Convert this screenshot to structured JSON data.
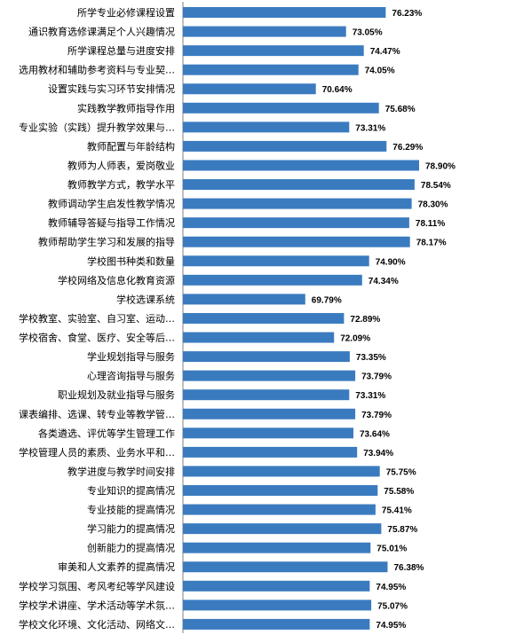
{
  "chart_data": {
    "type": "bar",
    "orientation": "horizontal",
    "title": "",
    "xlabel": "",
    "ylabel": "",
    "grid": false,
    "legend": "none",
    "bar_color": "#3A7BC0",
    "xlim": [
      60,
      80
    ],
    "categories": [
      "所学专业必修课程设置",
      "通识教育选修课满足个人兴趣情况",
      "所学课程总量与进度安排",
      "选用教材和辅助参考资料与专业契…",
      "设置实践与实习环节安排情况",
      "实践教学教师指导作用",
      "专业实验（实践）提升教学效果与…",
      "教师配置与年龄结构",
      "教师为人师表，爱岗敬业",
      "教师教学方式，教学水平",
      "教师调动学生启发性教学情况",
      "教师辅导答疑与指导工作情况",
      "教师帮助学生学习和发展的指导",
      "学校图书种类和数量",
      "学校网络及信息化教育资源",
      "学校选课系统",
      "学校教室、实验室、自习室、运动…",
      "学校宿舍、食堂、医疗、安全等后…",
      "学业规划指导与服务",
      "心理咨询指导与服务",
      "职业规划及就业指导与服务",
      "课表编排、选课、转专业等教学管…",
      "各类遴选、评优等学生管理工作",
      "学校管理人员的素质、业务水平和…",
      "教学进度与教学时间安排",
      "专业知识的提高情况",
      "专业技能的提高情况",
      "学习能力的提高情况",
      "创新能力的提高情况",
      "审美和人文素养的提高情况",
      "学校学习氛围、考风考纪等学风建设",
      "学校学术讲座、学术活动等学术氛…",
      "学校文化环境、文化活动、网络文…"
    ],
    "values": [
      76.23,
      73.05,
      74.47,
      74.05,
      70.64,
      75.68,
      73.31,
      76.29,
      78.9,
      78.54,
      78.3,
      78.11,
      78.17,
      74.9,
      74.34,
      69.79,
      72.89,
      72.09,
      73.35,
      73.79,
      73.31,
      73.79,
      73.64,
      73.94,
      75.75,
      75.58,
      75.41,
      75.87,
      75.01,
      76.38,
      74.95,
      75.07,
      74.95
    ],
    "value_labels": [
      "76.23%",
      "73.05%",
      "74.47%",
      "74.05%",
      "70.64%",
      "75.68%",
      "73.31%",
      "76.29%",
      "78.90%",
      "78.54%",
      "78.30%",
      "78.11%",
      "78.17%",
      "74.90%",
      "74.34%",
      "69.79%",
      "72.89%",
      "72.09%",
      "73.35%",
      "73.79%",
      "73.31%",
      "73.79%",
      "73.64%",
      "73.94%",
      "75.75%",
      "75.58%",
      "75.41%",
      "75.87%",
      "75.01%",
      "76.38%",
      "74.95%",
      "75.07%",
      "74.95%"
    ]
  }
}
